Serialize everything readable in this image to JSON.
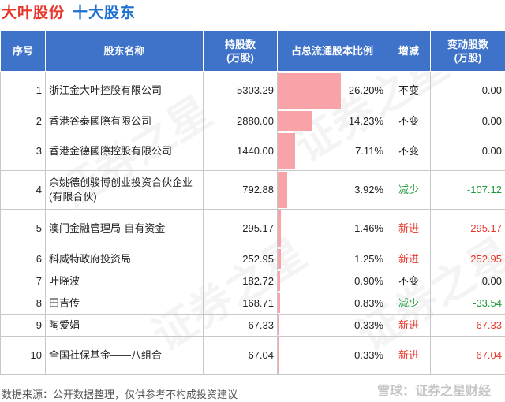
{
  "title": {
    "main": "大叶股份",
    "sub": "十大股东"
  },
  "headers": [
    "序号",
    "股东名称",
    "持股数\n(万股)",
    "占总流通股本比例",
    "增减",
    "变动股数\n(万股)"
  ],
  "rows": [
    {
      "idx": "1",
      "name": "浙江金大叶控股有限公司",
      "shares": "5303.29",
      "ratio_pct": 26.2,
      "ratio": "26.20%",
      "change": "不变",
      "change_type": "same",
      "delta": "0.00"
    },
    {
      "idx": "2",
      "name": "香港谷泰國際有限公司",
      "shares": "2880.00",
      "ratio_pct": 14.23,
      "ratio": "14.23%",
      "change": "不变",
      "change_type": "same",
      "delta": "0.00"
    },
    {
      "idx": "3",
      "name": "香港金德國際控股有限公司",
      "shares": "1440.00",
      "ratio_pct": 7.11,
      "ratio": "7.11%",
      "change": "不变",
      "change_type": "same",
      "delta": "0.00"
    },
    {
      "idx": "4",
      "name": "余姚德创骏博创业投资合伙企业(有限合伙)",
      "shares": "792.88",
      "ratio_pct": 3.92,
      "ratio": "3.92%",
      "change": "减少",
      "change_type": "down",
      "delta": "-107.12"
    },
    {
      "idx": "5",
      "name": "澳门金融管理局-自有资金",
      "shares": "295.17",
      "ratio_pct": 1.46,
      "ratio": "1.46%",
      "change": "新进",
      "change_type": "up",
      "delta": "295.17"
    },
    {
      "idx": "6",
      "name": "科威特政府投资局",
      "shares": "252.95",
      "ratio_pct": 1.25,
      "ratio": "1.25%",
      "change": "新进",
      "change_type": "up",
      "delta": "252.95"
    },
    {
      "idx": "7",
      "name": "叶晓波",
      "shares": "182.72",
      "ratio_pct": 0.9,
      "ratio": "0.90%",
      "change": "不变",
      "change_type": "same",
      "delta": "0.00"
    },
    {
      "idx": "8",
      "name": "田吉传",
      "shares": "168.71",
      "ratio_pct": 0.83,
      "ratio": "0.83%",
      "change": "减少",
      "change_type": "down",
      "delta": "-33.54"
    },
    {
      "idx": "9",
      "name": "陶爱娟",
      "shares": "67.33",
      "ratio_pct": 0.33,
      "ratio": "0.33%",
      "change": "新进",
      "change_type": "up",
      "delta": "67.33"
    },
    {
      "idx": "10",
      "name": "全国社保基金——八组合",
      "shares": "67.04",
      "ratio_pct": 0.33,
      "ratio": "0.33%",
      "change": "新进",
      "change_type": "up",
      "delta": "67.04"
    }
  ],
  "footer": "数据来源：公开数据整理，仅供参考不构成投资建议",
  "brand": "雪球：证券之星财经",
  "watermark": "证券之星",
  "colors": {
    "header_bg": "#3f73c9",
    "bar": "#f8a3a8",
    "increase": "#e8362a",
    "decrease": "#1f9a3a",
    "title_main": "#e8362a",
    "title_sub": "#1e6fd2"
  }
}
